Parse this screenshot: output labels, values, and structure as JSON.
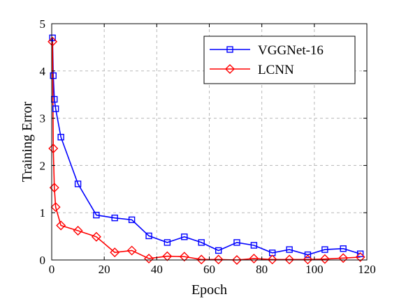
{
  "chart_data": {
    "type": "line",
    "title": "",
    "xlabel": "Epoch",
    "ylabel": "Training Error",
    "xlim": [
      0,
      120
    ],
    "ylim": [
      0,
      5
    ],
    "xticks": [
      0,
      20,
      40,
      60,
      80,
      100,
      120
    ],
    "yticks": [
      0,
      1,
      2,
      3,
      4,
      5
    ],
    "grid": "on",
    "legend_position": "top-right",
    "series": [
      {
        "name": "VGGNet-16",
        "color": "#0000ff",
        "marker": "square",
        "x": [
          0.3,
          0.6,
          1.0,
          1.5,
          3.5,
          10,
          17,
          24,
          30.5,
          37,
          44,
          50.5,
          57,
          63.5,
          70.5,
          77,
          84,
          90.5,
          97.5,
          104,
          111,
          117.5
        ],
        "y": [
          4.7,
          3.9,
          3.4,
          3.2,
          2.6,
          1.61,
          0.95,
          0.89,
          0.85,
          0.51,
          0.37,
          0.49,
          0.37,
          0.2,
          0.37,
          0.31,
          0.15,
          0.22,
          0.11,
          0.22,
          0.24,
          0.13
        ]
      },
      {
        "name": "LCNN",
        "color": "#ff0000",
        "marker": "diamond",
        "x": [
          0.3,
          0.6,
          1.0,
          1.5,
          3.5,
          10,
          17,
          24,
          30.5,
          37,
          44,
          50.5,
          57,
          63.5,
          70.5,
          77,
          84,
          90.5,
          97.5,
          104,
          111,
          117.5
        ],
        "y": [
          4.62,
          2.36,
          1.53,
          1.12,
          0.73,
          0.62,
          0.49,
          0.16,
          0.2,
          0.03,
          0.08,
          0.07,
          0.01,
          0.01,
          0.0,
          0.03,
          0.01,
          0.01,
          0.01,
          0.02,
          0.04,
          0.06
        ]
      }
    ]
  }
}
